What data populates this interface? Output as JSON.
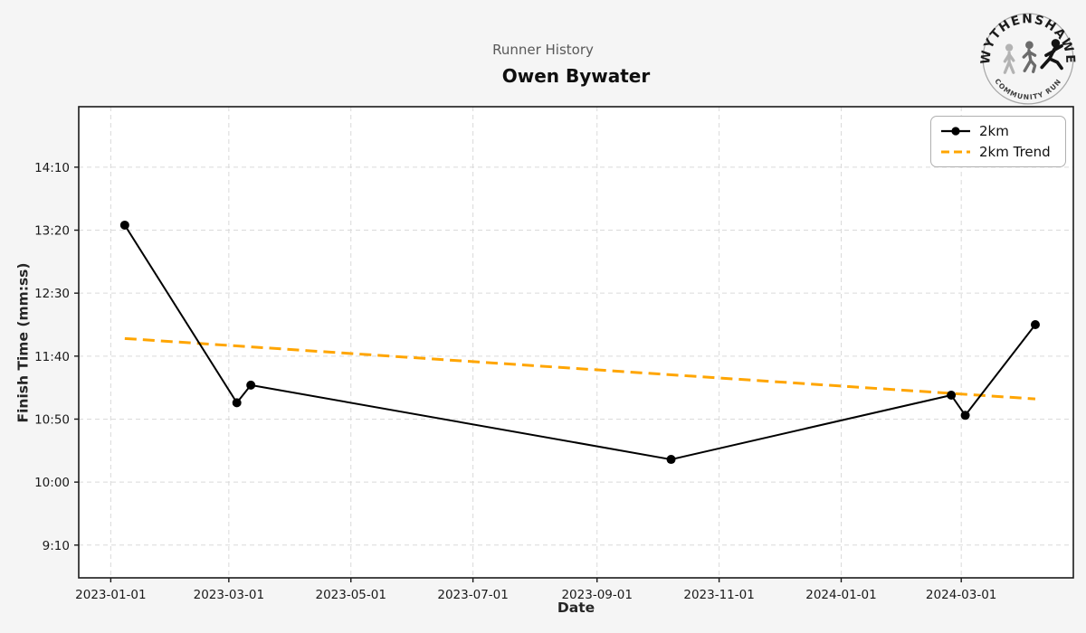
{
  "header": {
    "suptitle": "Runner History",
    "title": "Owen Bywater"
  },
  "logo": {
    "top_text": "WYTHENSHAWE",
    "bottom_text": "COMMUNITY RUN"
  },
  "legend": {
    "items": [
      {
        "label": "2km"
      },
      {
        "label": "2km Trend"
      }
    ]
  },
  "chart_data": {
    "type": "line",
    "title": "Owen Bywater",
    "suptitle": "Runner History",
    "xlabel": "Date",
    "ylabel": "Finish Time (mm:ss)",
    "grid": true,
    "legend_position": "top-right",
    "x_domain": [
      "2022-12-16",
      "2024-04-26"
    ],
    "y_domain_seconds": [
      524,
      898
    ],
    "x_ticks": [
      "2023-01-01",
      "2023-03-01",
      "2023-05-01",
      "2023-07-01",
      "2023-09-01",
      "2023-11-01",
      "2024-01-01",
      "2024-03-01"
    ],
    "y_ticks": [
      {
        "label": "14:10",
        "seconds": 850
      },
      {
        "label": "13:20",
        "seconds": 800
      },
      {
        "label": "12:30",
        "seconds": 750
      },
      {
        "label": "11:40",
        "seconds": 700
      },
      {
        "label": "10:50",
        "seconds": 650
      },
      {
        "label": "10:00",
        "seconds": 600
      },
      {
        "label": "9:10",
        "seconds": 550
      }
    ],
    "series": [
      {
        "name": "2km",
        "color": "#000000",
        "style": "solid",
        "marker": "circle",
        "points": [
          {
            "date": "2023-01-08",
            "time": "13:24",
            "seconds": 804
          },
          {
            "date": "2023-03-05",
            "time": "11:03",
            "seconds": 663
          },
          {
            "date": "2023-03-12",
            "time": "11:17",
            "seconds": 677
          },
          {
            "date": "2023-10-08",
            "time": "10:18",
            "seconds": 618
          },
          {
            "date": "2024-02-25",
            "time": "11:09",
            "seconds": 669
          },
          {
            "date": "2024-03-03",
            "time": "10:53",
            "seconds": 653
          },
          {
            "date": "2024-04-07",
            "time": "12:05",
            "seconds": 725
          }
        ]
      },
      {
        "name": "2km Trend",
        "color": "#FFA500",
        "style": "dashed",
        "marker": "none",
        "points": [
          {
            "date": "2023-01-08",
            "time": "11:54",
            "seconds": 714
          },
          {
            "date": "2024-04-07",
            "time": "11:06",
            "seconds": 666
          }
        ]
      }
    ]
  }
}
